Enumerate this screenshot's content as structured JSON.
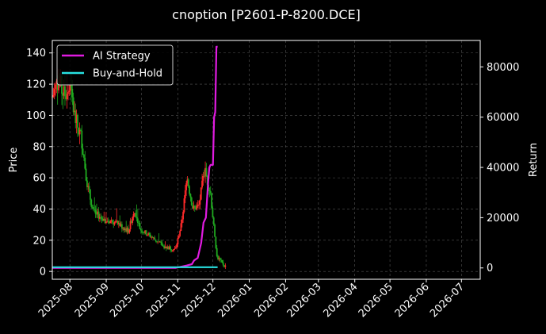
{
  "chart_data": {
    "type": "line",
    "title": "cnoption [P2601-P-8200.DCE]",
    "ylabel_left": "Price",
    "ylabel_right": "Return",
    "xlabel": "",
    "x_tick_labels": [
      "2025-08",
      "2025-09",
      "2025-10",
      "2025-11",
      "2025-12",
      "2026-01",
      "2026-02",
      "2026-03",
      "2026-04",
      "2026-05",
      "2026-06",
      "2026-07"
    ],
    "x_ticks_days": [
      0,
      31,
      61,
      92,
      122,
      153,
      184,
      212,
      243,
      273,
      304,
      334
    ],
    "x_range_days": [
      -15,
      350
    ],
    "y_left_range": [
      -5,
      148
    ],
    "y_left_ticks": [
      0,
      20,
      40,
      60,
      80,
      100,
      120,
      140
    ],
    "y_right_range": [
      -4500,
      90500
    ],
    "y_right_ticks": [
      0,
      20000,
      40000,
      60000,
      80000
    ],
    "grid": true,
    "legend_position": "top-left",
    "colors": {
      "up": "#ff2a2a",
      "down": "#1fa81f",
      "ai": "#e01be0",
      "bh": "#27e0e0",
      "grid": "#555555",
      "frame": "#ffffff"
    },
    "legend": [
      {
        "name": "AI Strategy",
        "color": "#e01be0"
      },
      {
        "name": "Buy-and-Hold",
        "color": "#27e0e0"
      }
    ],
    "candles_start_day": -15,
    "candles_end_day": 133,
    "candle_keypoints": [
      {
        "day": -15,
        "price": 112
      },
      {
        "day": -10,
        "price": 122
      },
      {
        "day": -5,
        "price": 113
      },
      {
        "day": 0,
        "price": 117
      },
      {
        "day": 5,
        "price": 96
      },
      {
        "day": 10,
        "price": 85
      },
      {
        "day": 15,
        "price": 55
      },
      {
        "day": 20,
        "price": 38
      },
      {
        "day": 30,
        "price": 33
      },
      {
        "day": 40,
        "price": 31
      },
      {
        "day": 50,
        "price": 26
      },
      {
        "day": 55,
        "price": 40
      },
      {
        "day": 60,
        "price": 27
      },
      {
        "day": 70,
        "price": 22
      },
      {
        "day": 80,
        "price": 16
      },
      {
        "day": 90,
        "price": 14
      },
      {
        "day": 95,
        "price": 30
      },
      {
        "day": 100,
        "price": 60
      },
      {
        "day": 105,
        "price": 40
      },
      {
        "day": 110,
        "price": 42
      },
      {
        "day": 115,
        "price": 65
      },
      {
        "day": 120,
        "price": 50
      },
      {
        "day": 125,
        "price": 10
      },
      {
        "day": 130,
        "price": 5
      },
      {
        "day": 133,
        "price": 3
      }
    ],
    "series": [
      {
        "name": "AI Strategy",
        "color": "#e01be0",
        "points": [
          [
            -15,
            0
          ],
          [
            90,
            0
          ],
          [
            95,
            500
          ],
          [
            100,
            1000
          ],
          [
            104,
            1500
          ],
          [
            106,
            3000
          ],
          [
            109,
            4000
          ],
          [
            112,
            10000
          ],
          [
            114,
            18000
          ],
          [
            116,
            20000
          ],
          [
            118,
            35000
          ],
          [
            119,
            40000
          ],
          [
            120,
            41000
          ],
          [
            122,
            41000
          ],
          [
            123,
            60000
          ],
          [
            124,
            62000
          ],
          [
            125,
            88000
          ],
          [
            126,
            88000
          ]
        ]
      },
      {
        "name": "Buy-and-Hold",
        "color": "#27e0e0",
        "points": [
          [
            -15,
            300
          ],
          [
            126,
            300
          ]
        ]
      }
    ]
  }
}
